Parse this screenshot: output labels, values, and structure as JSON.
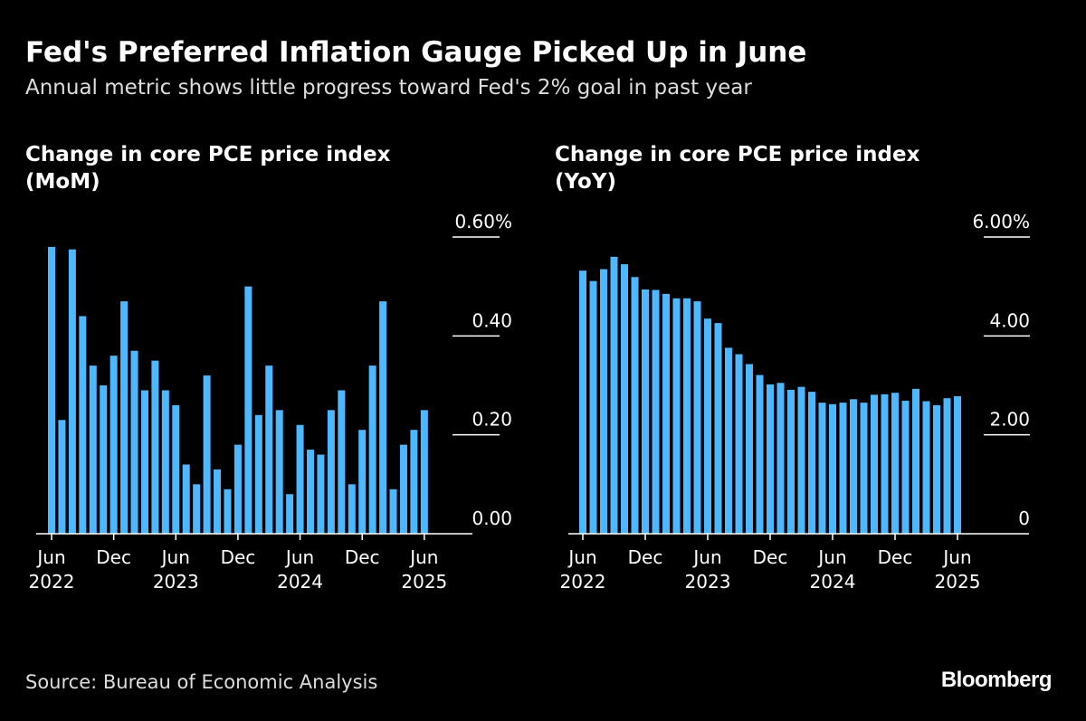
{
  "title": "Fed's Preferred Inflation Gauge Picked Up in June",
  "subtitle": "Annual metric shows little progress toward Fed's 2% goal in past year",
  "source": "Source: Bureau of Economic Analysis",
  "logo": "Bloomberg",
  "colors": {
    "bar": "#4db8ff",
    "background": "#000000"
  },
  "chart_data": [
    {
      "type": "bar",
      "title": "Change in core PCE price index\n(MoM)",
      "ylim": [
        0,
        0.6
      ],
      "yticks": [
        {
          "v": 0,
          "label": "0.00"
        },
        {
          "v": 0.2,
          "label": "0.20"
        },
        {
          "v": 0.4,
          "label": "0.40"
        },
        {
          "v": 0.6,
          "label": "0.60%"
        }
      ],
      "xticks": [
        {
          "i": 0,
          "label": "Jun",
          "year": "2022"
        },
        {
          "i": 6,
          "label": "Dec",
          "year": ""
        },
        {
          "i": 12,
          "label": "Jun",
          "year": "2023"
        },
        {
          "i": 18,
          "label": "Dec",
          "year": ""
        },
        {
          "i": 24,
          "label": "Jun",
          "year": "2024"
        },
        {
          "i": 30,
          "label": "Dec",
          "year": ""
        },
        {
          "i": 36,
          "label": "Jun",
          "year": "2025"
        }
      ],
      "x_start": "Jun 2022",
      "x_end": "Jun 2025",
      "values": [
        0.58,
        0.23,
        0.575,
        0.44,
        0.34,
        0.3,
        0.36,
        0.47,
        0.37,
        0.29,
        0.35,
        0.29,
        0.26,
        0.14,
        0.1,
        0.32,
        0.13,
        0.09,
        0.18,
        0.5,
        0.24,
        0.34,
        0.25,
        0.08,
        0.22,
        0.17,
        0.16,
        0.25,
        0.29,
        0.1,
        0.21,
        0.34,
        0.47,
        0.09,
        0.18,
        0.21,
        0.25
      ]
    },
    {
      "type": "bar",
      "title": "Change in core PCE price index\n(YoY)",
      "ylim": [
        0,
        6
      ],
      "yticks": [
        {
          "v": 0,
          "label": "0"
        },
        {
          "v": 2,
          "label": "2.00"
        },
        {
          "v": 4,
          "label": "4.00"
        },
        {
          "v": 6,
          "label": "6.00%"
        }
      ],
      "xticks": [
        {
          "i": 0,
          "label": "Jun",
          "year": "2022"
        },
        {
          "i": 6,
          "label": "Dec",
          "year": ""
        },
        {
          "i": 12,
          "label": "Jun",
          "year": "2023"
        },
        {
          "i": 18,
          "label": "Dec",
          "year": ""
        },
        {
          "i": 24,
          "label": "Jun",
          "year": "2024"
        },
        {
          "i": 30,
          "label": "Dec",
          "year": ""
        },
        {
          "i": 36,
          "label": "Jun",
          "year": "2025"
        }
      ],
      "x_start": "Jun 2022",
      "x_end": "Jun 2025",
      "values": [
        5.32,
        5.11,
        5.35,
        5.6,
        5.45,
        5.19,
        4.94,
        4.93,
        4.85,
        4.76,
        4.76,
        4.7,
        4.35,
        4.26,
        3.76,
        3.63,
        3.43,
        3.21,
        3.02,
        3.05,
        2.91,
        2.97,
        2.87,
        2.65,
        2.62,
        2.65,
        2.72,
        2.65,
        2.81,
        2.82,
        2.85,
        2.69,
        2.93,
        2.68,
        2.6,
        2.74,
        2.78
      ]
    }
  ]
}
